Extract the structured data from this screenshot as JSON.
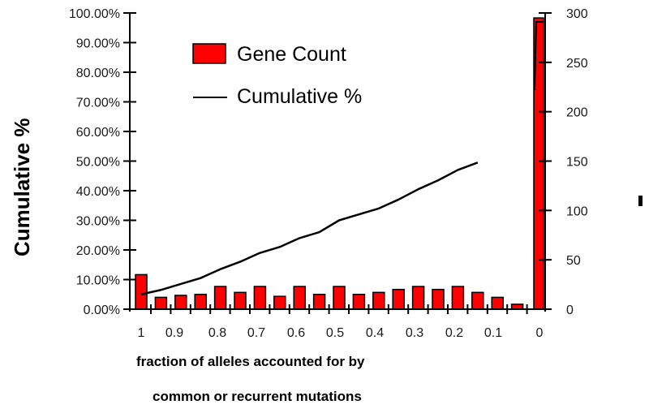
{
  "chart_data": {
    "type": "bar",
    "combo": "bar + line (dual axis)",
    "title": "",
    "xlabel": "fraction of alleles accounted for by common or recurrent mutations",
    "xlabel_lines": [
      "fraction of alleles accounted for by",
      "common or recurrent mutations"
    ],
    "ylabel": "Cumulative %",
    "ylabel_right": "",
    "x_tick_labels": [
      "1",
      "0.9",
      "0.8",
      "0.7",
      "0.6",
      "0.5",
      "0.4",
      "0.3",
      "0.2",
      "0.1",
      "0"
    ],
    "categories": [
      1.0,
      0.95,
      0.9,
      0.85,
      0.8,
      0.75,
      0.7,
      0.65,
      0.6,
      0.55,
      0.5,
      0.45,
      0.4,
      0.35,
      0.3,
      0.25,
      0.2,
      0.15,
      0.1,
      0.05,
      0.0
    ],
    "y_left": {
      "ticks": [
        "0.00%",
        "10.00%",
        "20.00%",
        "30.00%",
        "40.00%",
        "50.00%",
        "60.00%",
        "70.00%",
        "80.00%",
        "90.00%",
        "100.00%"
      ],
      "ylim": [
        0,
        100
      ]
    },
    "y_right": {
      "ticks": [
        "0",
        "50",
        "100",
        "150",
        "200",
        "250",
        "300"
      ],
      "ylim": [
        0,
        300
      ]
    },
    "series": [
      {
        "name": "Gene Count",
        "type": "bar",
        "axis": "right",
        "color": "#ff0000",
        "values": [
          35,
          12,
          14,
          15,
          23,
          17,
          23,
          13,
          23,
          15,
          23,
          15,
          17,
          20,
          23,
          20,
          23,
          17,
          12,
          5,
          295
        ]
      },
      {
        "name": "Cumulative %",
        "type": "line",
        "axis": "left",
        "color": "#000000",
        "x": [
          1.0,
          0.95,
          0.9,
          0.85,
          0.8,
          0.75,
          0.7,
          0.65,
          0.6,
          0.55,
          0.5,
          0.45,
          0.4,
          0.35,
          0.3,
          0.25,
          0.2,
          0.15
        ],
        "values": [
          5,
          6.5,
          8.5,
          10.5,
          13.5,
          16,
          19,
          21,
          24,
          26,
          30,
          32,
          34,
          37,
          40.5,
          43.5,
          47,
          49.5
        ],
        "final_segment": {
          "x": [
            0.025,
            0.0
          ],
          "values": [
            74,
            97
          ]
        }
      }
    ],
    "legend": {
      "position": "upper-left inside",
      "entries": [
        "Gene Count",
        "Cumulative %"
      ]
    },
    "grid": false
  },
  "legend": {
    "bar_label": "Gene Count",
    "line_label": "Cumulative %"
  },
  "axis": {
    "y_title": "Cumulative %",
    "x_title_line1": "fraction of alleles accounted for by",
    "x_title_line2": "common or recurrent mutations"
  }
}
